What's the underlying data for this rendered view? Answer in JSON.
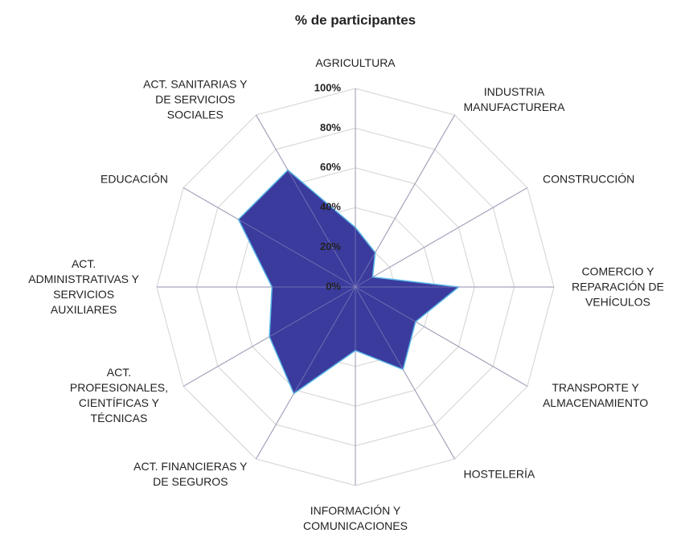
{
  "chart_data": {
    "type": "radar",
    "title": "% de participantes",
    "categories": [
      "AGRICULTURA",
      "INDUSTRIA\nMANUFACTURERA",
      "CONSTRUCCIÓN",
      "COMERCIO Y\nREPARACIÓN DE\nVEHÍCULOS",
      "TRANSPORTE Y\nALMACENAMIENTO",
      "HOSTELERÍA",
      "INFORMACIÓN Y\nCOMUNICACIONES",
      "ACT. FINANCIERAS Y\nDE SEGUROS",
      "ACT.\nPROFESIONALES,\nCIENTÍFICAS Y\nTÉCNICAS",
      "ACT.\nADMINISTRATIVAS Y\nSERVICIOS\nAUXILIARES",
      "EDUCACIÓN",
      "ACT. SANITARIAS Y\nDE SERVICIOS\nSOCIALES"
    ],
    "values": [
      30,
      20,
      10,
      52,
      35,
      48,
      32,
      62,
      50,
      42,
      68,
      68
    ],
    "color": "#3b3b9e",
    "line_color": "#5bb8e8",
    "ylim": [
      0,
      100
    ],
    "yticks": [
      {
        "value": 0,
        "label": "0%"
      },
      {
        "value": 20,
        "label": "20%"
      },
      {
        "value": 40,
        "label": "40%"
      },
      {
        "value": 60,
        "label": "60%"
      },
      {
        "value": 80,
        "label": "80%"
      },
      {
        "value": 100,
        "label": "100%"
      }
    ],
    "grid": true
  }
}
